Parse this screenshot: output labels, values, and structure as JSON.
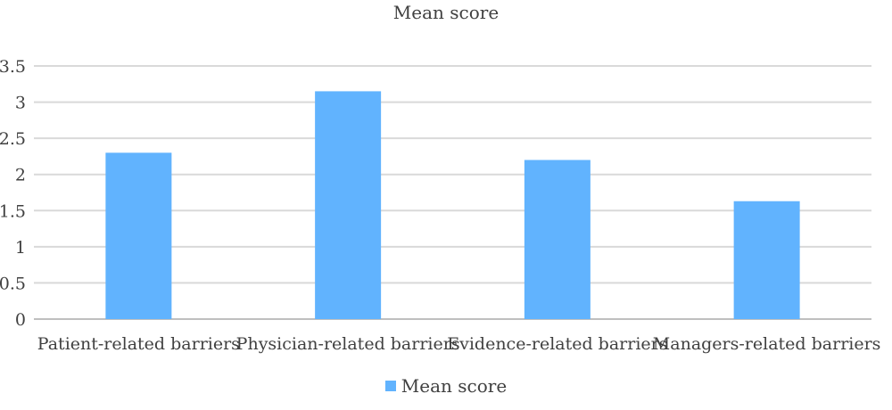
{
  "chart_data": {
    "type": "bar",
    "title": "Mean score",
    "xlabel": "",
    "ylabel": "",
    "categories": [
      "Patient-related barriers",
      "Physician-related barriers",
      "Evidence-related barriers",
      "Managers-related barriers"
    ],
    "series": [
      {
        "name": "Mean score",
        "values": [
          2.3,
          3.15,
          2.2,
          1.63
        ]
      }
    ],
    "ylim": [
      0,
      3.5
    ],
    "yticks": [
      "0",
      "0.5",
      "1",
      "1.5",
      "2",
      "2.5",
      "3",
      "3.5"
    ],
    "grid": true,
    "legend_position": "bottom",
    "colors": {
      "bar": "#61b3fe",
      "grid": "#d9d9d9",
      "axis": "#bfbfbf"
    }
  }
}
